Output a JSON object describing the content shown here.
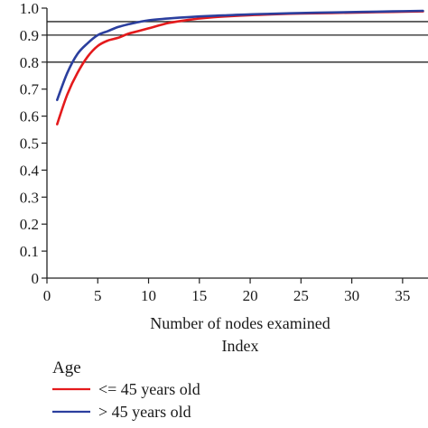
{
  "chart_data": {
    "type": "line",
    "title": "",
    "xlabel": "Number of nodes examined",
    "xlabel_sub": "Index",
    "ylabel": "",
    "xlim": [
      0,
      37.5
    ],
    "ylim": [
      0,
      1.0
    ],
    "x_ticks": [
      0,
      5,
      10,
      15,
      20,
      25,
      30,
      35
    ],
    "y_ticks": [
      0,
      0.1,
      0.2,
      0.3,
      0.4,
      0.5,
      0.6,
      0.7,
      0.8,
      0.9,
      1.0
    ],
    "x_tick_labels": [
      "0",
      "5",
      "10",
      "15",
      "20",
      "25",
      "30",
      "35"
    ],
    "y_tick_labels": [
      "0",
      "0.1",
      "0.2",
      "0.3",
      "0.4",
      "0.5",
      "0.6",
      "0.7",
      "0.8",
      "0.9",
      "1.0"
    ],
    "reference_lines": [
      0.8,
      0.9,
      0.95
    ],
    "legend": {
      "title": "Age",
      "placement": "bottom"
    },
    "series": [
      {
        "name": "<= 45 years old",
        "color": "#e41a1c",
        "x": [
          1,
          2,
          3,
          4,
          5,
          6,
          7,
          8,
          9,
          10,
          12,
          14,
          16,
          18,
          20,
          22,
          25,
          28,
          31,
          34,
          37
        ],
        "y": [
          0.57,
          0.68,
          0.76,
          0.82,
          0.86,
          0.88,
          0.89,
          0.905,
          0.915,
          0.925,
          0.945,
          0.957,
          0.965,
          0.97,
          0.974,
          0.977,
          0.98,
          0.982,
          0.984,
          0.986,
          0.988
        ]
      },
      {
        "name": "> 45 years old",
        "color": "#2b3f9e",
        "x": [
          1,
          2,
          3,
          4,
          5,
          6,
          7,
          8,
          9,
          10,
          12,
          14,
          16,
          18,
          20,
          22,
          25,
          28,
          31,
          34,
          37
        ],
        "y": [
          0.66,
          0.76,
          0.83,
          0.87,
          0.9,
          0.915,
          0.93,
          0.94,
          0.948,
          0.955,
          0.962,
          0.967,
          0.971,
          0.974,
          0.977,
          0.979,
          0.982,
          0.984,
          0.986,
          0.988,
          0.99
        ]
      }
    ]
  }
}
